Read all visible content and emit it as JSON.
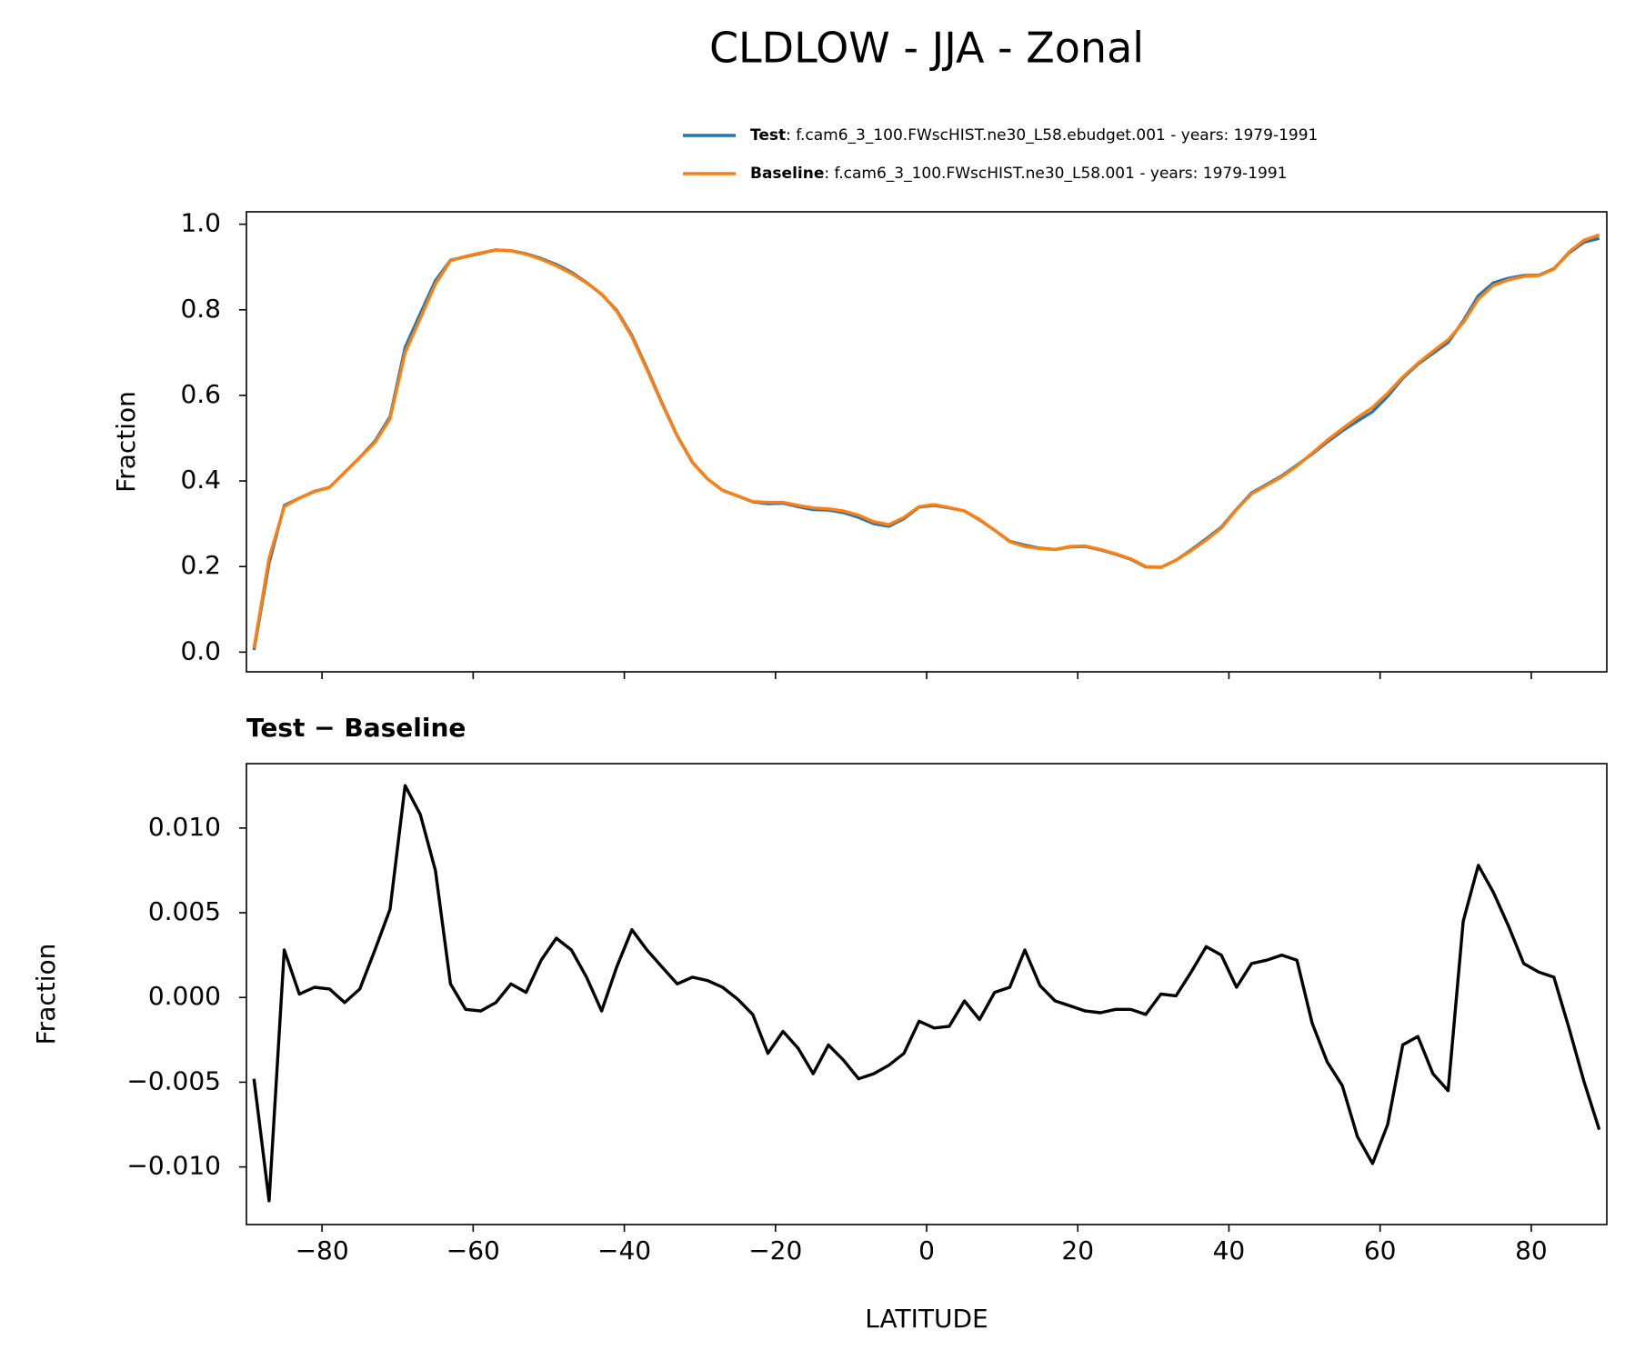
{
  "title": "CLDLOW - JJA - Zonal",
  "chart_data": [
    {
      "type": "line",
      "ylabel": "Fraction",
      "xlim": [
        -90,
        90
      ],
      "xticks": [
        -80,
        -60,
        -40,
        -20,
        0,
        20,
        40,
        60,
        80
      ],
      "ylim": [
        -0.046,
        1.029
      ],
      "yticks": [
        {
          "value": 0,
          "label": "0.0"
        },
        {
          "value": 0.2,
          "label": "0.2"
        },
        {
          "value": 0.4,
          "label": "0.4"
        },
        {
          "value": 0.6,
          "label": "0.6"
        },
        {
          "value": 0.8,
          "label": "0.8"
        },
        {
          "value": 1,
          "label": "1.0"
        }
      ],
      "x": [
        -89,
        -87,
        -85,
        -83,
        -81,
        -79,
        -77,
        -75,
        -73,
        -71,
        -69,
        -67,
        -65,
        -63,
        -61,
        -59,
        -57,
        -55,
        -53,
        -51,
        -49,
        -47,
        -45,
        -43,
        -41,
        -39,
        -37,
        -35,
        -33,
        -31,
        -29,
        -27,
        -25,
        -23,
        -21,
        -19,
        -17,
        -15,
        -13,
        -11,
        -9,
        -7,
        -5,
        -3,
        -1,
        1,
        3,
        5,
        7,
        9,
        11,
        13,
        15,
        17,
        19,
        21,
        23,
        25,
        27,
        29,
        31,
        33,
        35,
        37,
        39,
        41,
        43,
        45,
        47,
        49,
        51,
        53,
        55,
        57,
        59,
        61,
        63,
        65,
        67,
        69,
        71,
        73,
        75,
        77,
        79,
        81,
        83,
        85,
        87,
        89
      ],
      "series": [
        {
          "name": "Test",
          "description": ": f.cam6_3_100.FWscHIST.ne30_L58.ebudget.001 - years: 1979-1991",
          "color": "#1f77b4",
          "values": [
            0.005,
            0.208,
            0.343,
            0.36,
            0.376,
            0.385,
            0.42,
            0.455,
            0.493,
            0.55,
            0.712,
            0.791,
            0.868,
            0.916,
            0.924,
            0.932,
            0.94,
            0.938,
            0.931,
            0.92,
            0.906,
            0.888,
            0.864,
            0.836,
            0.799,
            0.74,
            0.663,
            0.582,
            0.506,
            0.444,
            0.405,
            0.378,
            0.365,
            0.351,
            0.347,
            0.348,
            0.34,
            0.333,
            0.332,
            0.326,
            0.315,
            0.3,
            0.294,
            0.312,
            0.339,
            0.343,
            0.337,
            0.33,
            0.309,
            0.285,
            0.259,
            0.25,
            0.243,
            0.24,
            0.246,
            0.247,
            0.239,
            0.229,
            0.217,
            0.199,
            0.198,
            0.215,
            0.239,
            0.265,
            0.292,
            0.334,
            0.372,
            0.392,
            0.412,
            0.437,
            0.463,
            0.491,
            0.517,
            0.54,
            0.562,
            0.598,
            0.64,
            0.673,
            0.698,
            0.724,
            0.774,
            0.833,
            0.863,
            0.874,
            0.88,
            0.881,
            0.896,
            0.933,
            0.958,
            0.967
          ]
        },
        {
          "name": "Baseline",
          "description": ": f.cam6_3_100.FWscHIST.ne30_L58.001 - years: 1979-1991",
          "color": "#ff7f0e",
          "values": [
            0.01,
            0.22,
            0.34,
            0.36,
            0.375,
            0.385,
            0.42,
            0.455,
            0.49,
            0.545,
            0.7,
            0.78,
            0.86,
            0.915,
            0.925,
            0.933,
            0.94,
            0.938,
            0.93,
            0.918,
            0.903,
            0.885,
            0.863,
            0.837,
            0.797,
            0.737,
            0.66,
            0.58,
            0.505,
            0.443,
            0.405,
            0.378,
            0.365,
            0.352,
            0.35,
            0.35,
            0.343,
            0.337,
            0.335,
            0.33,
            0.32,
            0.305,
            0.298,
            0.315,
            0.34,
            0.345,
            0.338,
            0.33,
            0.31,
            0.285,
            0.258,
            0.247,
            0.242,
            0.24,
            0.247,
            0.248,
            0.24,
            0.23,
            0.218,
            0.2,
            0.198,
            0.215,
            0.237,
            0.262,
            0.29,
            0.333,
            0.37,
            0.39,
            0.41,
            0.435,
            0.465,
            0.495,
            0.522,
            0.548,
            0.572,
            0.605,
            0.643,
            0.675,
            0.703,
            0.73,
            0.77,
            0.825,
            0.857,
            0.87,
            0.878,
            0.88,
            0.895,
            0.935,
            0.963,
            0.975
          ]
        }
      ]
    },
    {
      "type": "line",
      "title": "Test − Baseline",
      "ylabel": "Fraction",
      "xlabel": "LATITUDE",
      "xlim": [
        -90,
        90
      ],
      "xticks": [
        {
          "value": -80,
          "label": "−80"
        },
        {
          "value": -60,
          "label": "−60"
        },
        {
          "value": -40,
          "label": "−40"
        },
        {
          "value": -20,
          "label": "−20"
        },
        0,
        20,
        40,
        60,
        80
      ],
      "ylim": [
        -0.0134,
        0.0138
      ],
      "yticks": [
        {
          "value": -0.01,
          "label": "−0.010"
        },
        {
          "value": -0.005,
          "label": "−0.005"
        },
        {
          "value": 0,
          "label": "0.000"
        },
        {
          "value": 0.005,
          "label": "0.005"
        },
        {
          "value": 0.01,
          "label": "0.010"
        }
      ],
      "x": [
        -89,
        -87,
        -85,
        -83,
        -81,
        -79,
        -77,
        -75,
        -73,
        -71,
        -69,
        -67,
        -65,
        -63,
        -61,
        -59,
        -57,
        -55,
        -53,
        -51,
        -49,
        -47,
        -45,
        -43,
        -41,
        -39,
        -37,
        -35,
        -33,
        -31,
        -29,
        -27,
        -25,
        -23,
        -21,
        -19,
        -17,
        -15,
        -13,
        -11,
        -9,
        -7,
        -5,
        -3,
        -1,
        1,
        3,
        5,
        7,
        9,
        11,
        13,
        15,
        17,
        19,
        21,
        23,
        25,
        27,
        29,
        31,
        33,
        35,
        37,
        39,
        41,
        43,
        45,
        47,
        49,
        51,
        53,
        55,
        57,
        59,
        61,
        63,
        65,
        67,
        69,
        71,
        73,
        75,
        77,
        79,
        81,
        83,
        85,
        87,
        89
      ],
      "series": [
        {
          "name": "Test − Baseline",
          "color": "#000000",
          "values": [
            -0.0048,
            -0.012,
            0.0028,
            0.0002,
            0.0006,
            0.0005,
            -0.0003,
            0.0005,
            0.0028,
            0.0052,
            0.0125,
            0.0108,
            0.0075,
            0.0008,
            -0.0007,
            -0.0008,
            -0.0003,
            0.0008,
            0.0003,
            0.0022,
            0.0035,
            0.0028,
            0.0012,
            -0.0008,
            0.0018,
            0.004,
            0.0028,
            0.0018,
            0.0008,
            0.0012,
            0.001,
            0.0006,
            -0.0001,
            -0.001,
            -0.0033,
            -0.002,
            -0.003,
            -0.0045,
            -0.0028,
            -0.0037,
            -0.0048,
            -0.0045,
            -0.004,
            -0.0033,
            -0.0014,
            -0.0018,
            -0.0017,
            -0.0002,
            -0.0013,
            0.0003,
            0.0006,
            0.0028,
            0.0007,
            -0.0002,
            -0.0005,
            -0.0008,
            -0.0009,
            -0.0007,
            -0.0007,
            -0.001,
            0.0002,
            0.0001,
            0.0015,
            0.003,
            0.0025,
            0.0006,
            0.002,
            0.0022,
            0.0025,
            0.0022,
            -0.0015,
            -0.0038,
            -0.0052,
            -0.0082,
            -0.0098,
            -0.0075,
            -0.0028,
            -0.0023,
            -0.0045,
            -0.0055,
            0.0045,
            0.0078,
            0.0062,
            0.0042,
            0.002,
            0.0015,
            0.0012,
            -0.0018,
            -0.005,
            -0.0078
          ]
        }
      ]
    }
  ]
}
